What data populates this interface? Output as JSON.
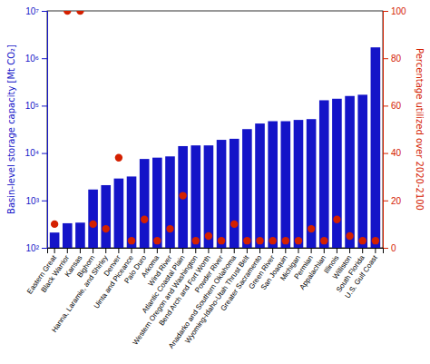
{
  "chart_data": {
    "type": "bar",
    "categories": [
      "Eastern Great",
      "Black Warrior",
      "Kansas",
      "Bighorn",
      "Hanna, Laramie, and Shirley",
      "Denver",
      "Uinta and Piceance",
      "Palo Duro",
      "Arkoma",
      "Wind River",
      "Atlantic Coastal Plain",
      "Western Oregon and Washington",
      "Bend Arch and Fort Worth",
      "Powder River",
      "Anadarko and Southern Oklahoma",
      "Wyoming-Idaho-Utah Thrust Belt",
      "Greater Sacramento",
      "Green River",
      "San Joaquin",
      "Michigan",
      "Permian",
      "Appalachian",
      "Illinois",
      "Williston",
      "South Florida",
      "U.S. Gulf Coast"
    ],
    "series": [
      {
        "type": "bar",
        "color": "#1414c8",
        "values": [
          210,
          330,
          340,
          1700,
          2100,
          2900,
          3200,
          7500,
          8000,
          8500,
          14000,
          14500,
          14500,
          19000,
          20000,
          32000,
          42000,
          47000,
          47000,
          50000,
          52000,
          130000,
          140000,
          160000,
          170000,
          1700000
        ]
      },
      {
        "type": "scatter",
        "axis": "y2",
        "color": "#d42000",
        "marker": "circle",
        "values": [
          10,
          100,
          100,
          10,
          8,
          38,
          3,
          12,
          3,
          8,
          22,
          3,
          5,
          3,
          10,
          3,
          3,
          3,
          3,
          3,
          8,
          3,
          12,
          5,
          3,
          3
        ]
      }
    ],
    "log": "y",
    "ylabel": "Basin-level storage capacity [Mt CO₂]",
    "y2label": "Percentage utilized over 2020-2100",
    "ylim": [
      100,
      10000000
    ],
    "yticks": [
      {
        "value": 100,
        "label": "10²"
      },
      {
        "value": 1000,
        "label": "10³"
      },
      {
        "value": 10000,
        "label": "10⁴"
      },
      {
        "value": 100000,
        "label": "10⁵"
      },
      {
        "value": 1000000,
        "label": "10⁶"
      },
      {
        "value": 10000000,
        "label": "10⁷"
      }
    ],
    "y2lim": [
      0,
      100
    ],
    "y2ticks": [
      0,
      20,
      40,
      60,
      80,
      100
    ],
    "grid": false
  }
}
